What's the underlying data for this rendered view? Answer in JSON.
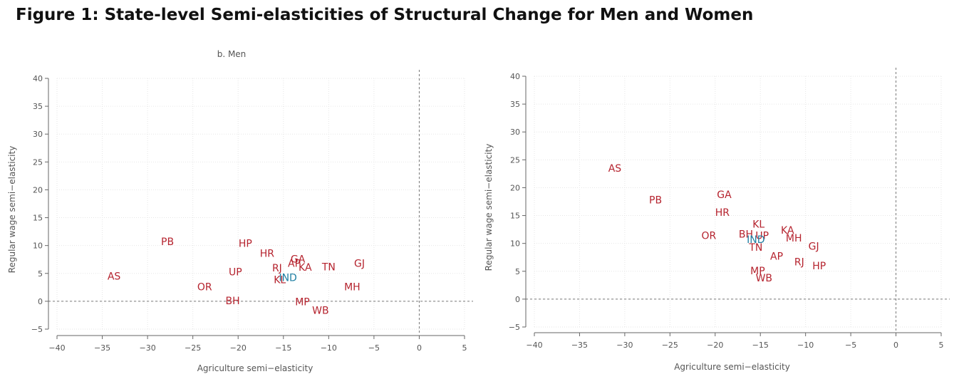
{
  "figure_title": "Figure 1: State-level Semi-elasticities of Structural Change for Men and Women",
  "colors": {
    "state": "#b5232e",
    "national": "#1f7fa3",
    "axis": "#666666",
    "grid": "#e6e6e6"
  },
  "chart_data": [
    {
      "type": "scatter",
      "title": "",
      "subtitle": "b. Men",
      "xlabel": "Agriculture semi−elasticity",
      "ylabel": "Regular wage semi−elasticity",
      "xlim": [
        -40,
        5
      ],
      "ylim": [
        -5,
        40
      ],
      "xticks": [
        -40,
        -35,
        -30,
        -25,
        -20,
        -15,
        -10,
        -5,
        0,
        5
      ],
      "yticks": [
        -5,
        0,
        5,
        10,
        15,
        20,
        25,
        30,
        35,
        40
      ],
      "tick_labels_x": [
        "−40",
        "−35",
        "−30",
        "−25",
        "−20",
        "−15",
        "−10",
        "−5",
        "0",
        "5"
      ],
      "tick_labels_y": [
        "−5",
        "0",
        "5",
        "10",
        "15",
        "20",
        "25",
        "30",
        "35",
        "40"
      ],
      "grid": true,
      "reference_lines": {
        "x": 0,
        "y": 0
      },
      "points": [
        {
          "label": "PB",
          "x": -27.8,
          "y": 10.7
        },
        {
          "label": "HP",
          "x": -19.2,
          "y": 10.4
        },
        {
          "label": "HR",
          "x": -16.8,
          "y": 8.6
        },
        {
          "label": "AS",
          "x": -33.7,
          "y": 4.5
        },
        {
          "label": "UP",
          "x": -20.3,
          "y": 5.3
        },
        {
          "label": "OR",
          "x": -23.7,
          "y": 2.6
        },
        {
          "label": "BH",
          "x": -20.6,
          "y": 0.1
        },
        {
          "label": "RJ",
          "x": -15.7,
          "y": 6.0
        },
        {
          "label": "AP",
          "x": -13.8,
          "y": 6.8
        },
        {
          "label": "GA",
          "x": -13.4,
          "y": 7.6
        },
        {
          "label": "KA",
          "x": -12.6,
          "y": 6.1
        },
        {
          "label": "KL",
          "x": -15.4,
          "y": 3.9
        },
        {
          "label": "IND",
          "x": -14.5,
          "y": 4.3,
          "group": "national"
        },
        {
          "label": "TN",
          "x": -10.0,
          "y": 6.2
        },
        {
          "label": "GJ",
          "x": -6.6,
          "y": 6.8
        },
        {
          "label": "MH",
          "x": -7.4,
          "y": 2.6
        },
        {
          "label": "MP",
          "x": -12.9,
          "y": -0.1
        },
        {
          "label": "WB",
          "x": -10.9,
          "y": -1.6
        }
      ]
    },
    {
      "type": "scatter",
      "title": "",
      "xlabel": "Agriculture semi−elasticity",
      "ylabel": "Regular wage semi−elasticity",
      "xlim": [
        -40,
        5
      ],
      "ylim": [
        -5,
        40
      ],
      "xticks": [
        -40,
        -35,
        -30,
        -25,
        -20,
        -15,
        -10,
        -5,
        0,
        5
      ],
      "yticks": [
        -5,
        0,
        5,
        10,
        15,
        20,
        25,
        30,
        35,
        40
      ],
      "tick_labels_x": [
        "−40",
        "−35",
        "−30",
        "−25",
        "−20",
        "−15",
        "−10",
        "−5",
        "0",
        "5"
      ],
      "tick_labels_y": [
        "−5",
        "0",
        "5",
        "10",
        "15",
        "20",
        "25",
        "30",
        "35",
        "40"
      ],
      "grid": true,
      "reference_lines": {
        "x": 0,
        "y": 0
      },
      "points": [
        {
          "label": "AS",
          "x": -31.1,
          "y": 23.5
        },
        {
          "label": "PB",
          "x": -26.6,
          "y": 17.8
        },
        {
          "label": "GA",
          "x": -19.0,
          "y": 18.8
        },
        {
          "label": "HR",
          "x": -19.2,
          "y": 15.6
        },
        {
          "label": "OR",
          "x": -20.7,
          "y": 11.4
        },
        {
          "label": "KL",
          "x": -15.2,
          "y": 13.5
        },
        {
          "label": "BH",
          "x": -16.6,
          "y": 11.7
        },
        {
          "label": "UP",
          "x": -14.8,
          "y": 11.4
        },
        {
          "label": "IND",
          "x": -15.5,
          "y": 10.7,
          "group": "national"
        },
        {
          "label": "TN",
          "x": -15.5,
          "y": 9.3
        },
        {
          "label": "KA",
          "x": -12.0,
          "y": 12.4
        },
        {
          "label": "MH",
          "x": -11.3,
          "y": 11.0
        },
        {
          "label": "GJ",
          "x": -9.1,
          "y": 9.5
        },
        {
          "label": "AP",
          "x": -13.2,
          "y": 7.7
        },
        {
          "label": "RJ",
          "x": -10.7,
          "y": 6.7
        },
        {
          "label": "HP",
          "x": -8.5,
          "y": 6.0
        },
        {
          "label": "MP",
          "x": -15.3,
          "y": 5.1
        },
        {
          "label": "WB",
          "x": -14.6,
          "y": 3.8
        }
      ]
    }
  ]
}
